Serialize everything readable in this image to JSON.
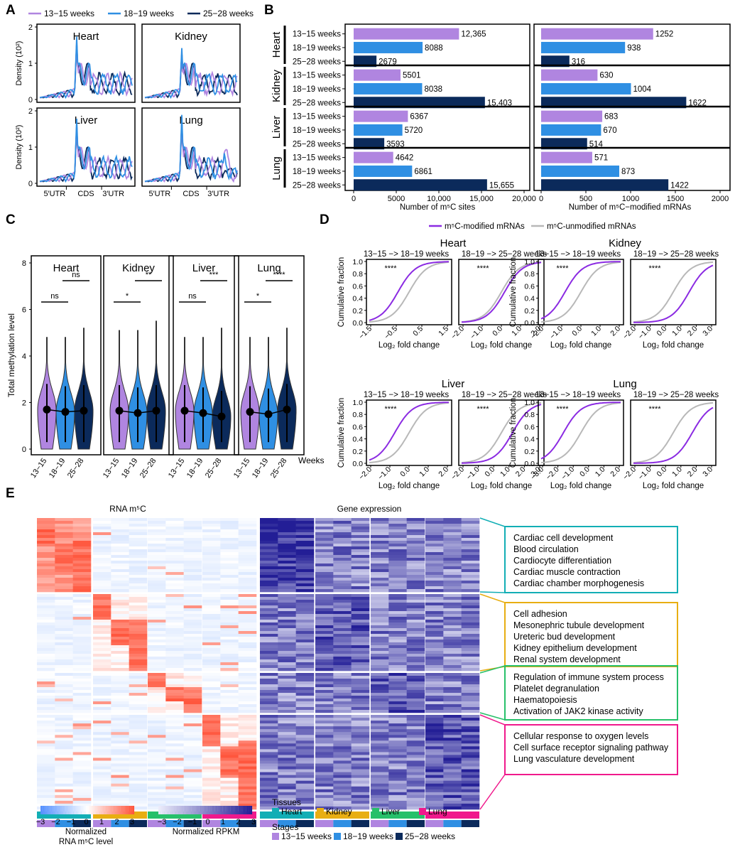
{
  "colors": {
    "s1": "#b085e0",
    "s2": "#2f8fe3",
    "s3": "#0b2a5b",
    "heart": "#12aeb5",
    "kidney": "#e8ae12",
    "liver": "#27c06a",
    "lung": "#f0198c",
    "mod": "#8b2be2",
    "unmod": "#b8b8b8",
    "red": "#f05a45",
    "blue": "#3a2bb0"
  },
  "panels": {
    "a": "A",
    "b": "B",
    "c": "C",
    "d": "D",
    "e": "E"
  },
  "stages": [
    "13−15 weeks",
    "18−19 weeks",
    "25−28 weeks"
  ],
  "stages_short": [
    "13−15",
    "18−19",
    "25−28"
  ],
  "tissues": [
    "Heart",
    "Kidney",
    "Liver",
    "Lung"
  ],
  "chart_data": [
    {
      "panel": "A",
      "type": "line",
      "ylabel": "Density (10²)",
      "yticks": [
        "0",
        "1",
        "2"
      ],
      "ylim": [
        0,
        2
      ],
      "xticks": [
        "5′UTR",
        "CDS",
        "3′UTR"
      ],
      "legend": [
        "13−15 weeks",
        "18−19 weeks",
        "25−28 weeks"
      ],
      "facets": [
        "Heart",
        "Kidney",
        "Liver",
        "Lung"
      ]
    },
    {
      "panel": "B",
      "type": "bar",
      "orientation": "horizontal",
      "xlabels": [
        "Number of m⁵C sites",
        "Number of m⁵C−modified mRNAs"
      ],
      "xticks_sites": [
        "0",
        "5000",
        "10,000",
        "15,000",
        "20,000"
      ],
      "xlim_sites": [
        0,
        20000
      ],
      "xticks_mrna": [
        "0",
        "500",
        "1000",
        "1500",
        "2000"
      ],
      "xlim_mrna": [
        0,
        2000
      ],
      "sites": [
        [
          12365,
          8088,
          2679
        ],
        [
          5501,
          8038,
          15403
        ],
        [
          6367,
          5720,
          3593
        ],
        [
          4642,
          6861,
          15655
        ]
      ],
      "sites_labels": [
        [
          "12,365",
          "8088",
          "2679"
        ],
        [
          "5501",
          "8038",
          "15,403"
        ],
        [
          "6367",
          "5720",
          "3593"
        ],
        [
          "4642",
          "6861",
          "15,655"
        ]
      ],
      "mrna": [
        [
          1252,
          938,
          316
        ],
        [
          630,
          1004,
          1622
        ],
        [
          683,
          670,
          514
        ],
        [
          571,
          873,
          1422
        ]
      ]
    },
    {
      "panel": "C",
      "type": "violin",
      "ylabel": "Total methylation level",
      "xlabel": "Weeks",
      "yticks": [
        "0",
        "2",
        "4",
        "6",
        "8"
      ],
      "ylim": [
        0,
        8
      ],
      "medians": [
        [
          1.7,
          1.6,
          1.65
        ],
        [
          1.65,
          1.55,
          1.65
        ],
        [
          1.65,
          1.55,
          1.4
        ],
        [
          1.6,
          1.5,
          1.7
        ]
      ],
      "sig_a": [
        "ns",
        "*",
        "ns",
        "*"
      ],
      "sig_b": [
        "ns",
        "**",
        "***",
        "****"
      ]
    },
    {
      "panel": "D",
      "type": "line",
      "subtype": "cumulative distribution",
      "legend": [
        "m⁵C-modified mRNAs",
        "m⁵C-unmodified mRNAs"
      ],
      "ylabel": "Cumulative fraction",
      "xlabel": "Log₂ fold change",
      "yticks": [
        "0.0",
        "0.2",
        "0.4",
        "0.6",
        "0.8",
        "1.0"
      ],
      "comparisons": [
        "13−15 −> 18−19 weeks",
        "18−19 −> 25−28 weeks"
      ],
      "significance": "****",
      "xticks": [
        [
          "−1.5",
          "−0.5",
          "0.5",
          "1.5"
        ],
        [
          "−2.0",
          "−1.0",
          "0.0",
          "1.0",
          "2.0"
        ],
        [
          "−2.0",
          "−1.0",
          "0.0",
          "1.0",
          "2.0"
        ],
        [
          "−2.0",
          "−1.0",
          "0.0",
          "1.0",
          "2.0",
          "3.0"
        ],
        [
          "−2.0",
          "−1.0",
          "0.0",
          "1.0",
          "2.0"
        ],
        [
          "−2.0",
          "−1.0",
          "0.0",
          "1.0",
          "2.0",
          "3.0"
        ],
        [
          "−3.0",
          "−2.0",
          "−1.0",
          "0.0",
          "1.0",
          "2.0"
        ],
        [
          "−2.0",
          "−1.0",
          "0.0",
          "1.0",
          "2.0",
          "3.0"
        ]
      ]
    },
    {
      "panel": "E",
      "type": "heatmap",
      "titles": [
        "RNA m⁵C",
        "Gene expression"
      ],
      "colorbar_ticks": [
        "−3",
        "−2",
        "−1",
        "0",
        "1",
        "2",
        "3"
      ],
      "colorbar1_label": [
        "Normalized",
        "RNA m⁵C level"
      ],
      "colorbar2_label": "Normalized RPKM",
      "legend_tissues_title": "Tissues",
      "legend_stages_title": "Stages",
      "go_terms": [
        [
          "Cardiac cell development",
          "Blood circulation",
          "Cardiocyte differentiation",
          "Cardiac muscle contraction",
          "Cardiac chamber morphogenesis"
        ],
        [
          "Cell adhesion",
          "Mesonephric tubule development",
          "Ureteric bud development",
          "Kidney epithelium development",
          "Renal system development"
        ],
        [
          "Regulation of immune system process",
          "Platelet degranulation",
          "Haematopoiesis",
          "Activation of JAK2 kinase activity"
        ],
        [
          "Cellular response to oxygen levels",
          "Cell surface receptor signaling pathway",
          "Lung vasculature development"
        ]
      ]
    }
  ]
}
